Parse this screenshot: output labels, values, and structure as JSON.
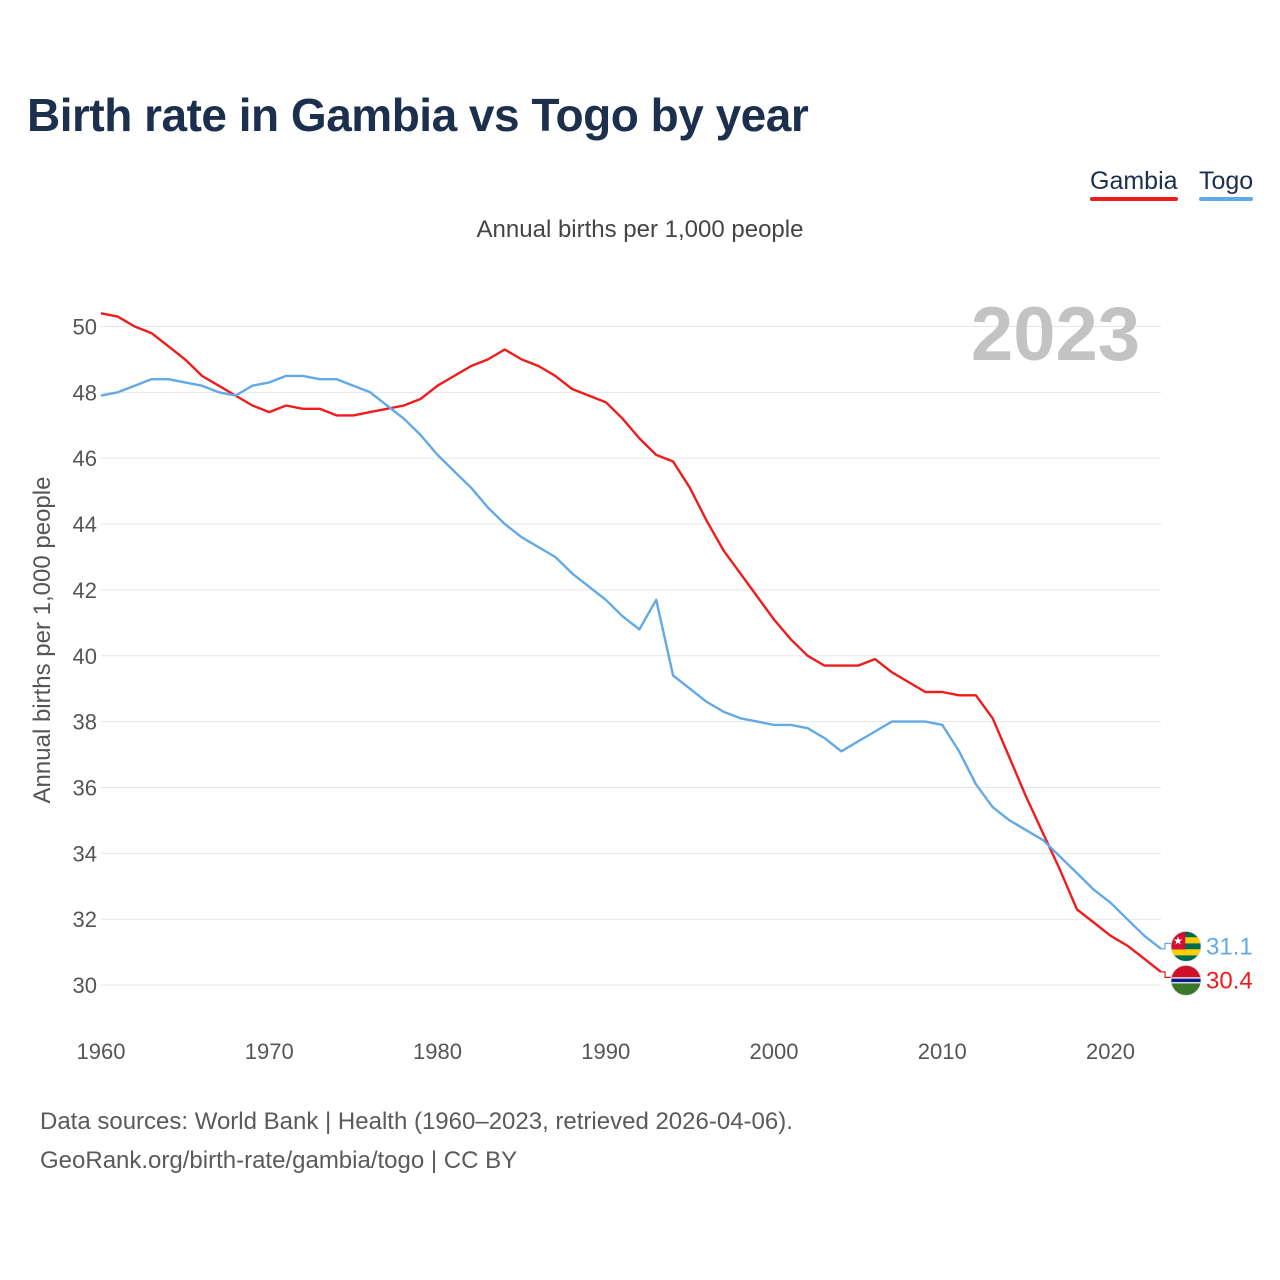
{
  "title": "Birth rate in Gambia vs Togo by year",
  "legend": [
    {
      "name": "Gambia",
      "color": "#ee1c1c"
    },
    {
      "name": "Togo",
      "color": "#62a9e6"
    }
  ],
  "footer": {
    "source": "Data sources: World Bank | Health (1960–2023, retrieved 2026-04-06).",
    "credit": "GeoRank.org/birth-rate/gambia/togo | CC BY"
  },
  "chart_data": {
    "type": "line",
    "title": "Birth rate in Gambia vs Togo by year",
    "subtitle": "Annual births per 1,000 people",
    "xlabel": "",
    "ylabel": "Annual births per 1,000 people",
    "year_label": "2023",
    "xlim": [
      1960,
      2023
    ],
    "ylim": [
      29,
      50.5
    ],
    "x_ticks": [
      1960,
      1970,
      1980,
      1990,
      2000,
      2010,
      2020
    ],
    "y_ticks": [
      30,
      32,
      34,
      36,
      38,
      40,
      42,
      44,
      46,
      48,
      50
    ],
    "grid": true,
    "legend_position": "top-right",
    "x": [
      1960,
      1961,
      1962,
      1963,
      1964,
      1965,
      1966,
      1967,
      1968,
      1969,
      1970,
      1971,
      1972,
      1973,
      1974,
      1975,
      1976,
      1977,
      1978,
      1979,
      1980,
      1981,
      1982,
      1983,
      1984,
      1985,
      1986,
      1987,
      1988,
      1989,
      1990,
      1991,
      1992,
      1993,
      1994,
      1995,
      1996,
      1997,
      1998,
      1999,
      2000,
      2001,
      2002,
      2003,
      2004,
      2005,
      2006,
      2007,
      2008,
      2009,
      2010,
      2011,
      2012,
      2013,
      2014,
      2015,
      2016,
      2017,
      2018,
      2019,
      2020,
      2021,
      2022,
      2023
    ],
    "series": [
      {
        "name": "Gambia",
        "color": "#ee1c1c",
        "flag": "gambia-flag-icon",
        "end_label": "30.4",
        "values": [
          50.4,
          50.3,
          50.0,
          49.8,
          49.4,
          49.0,
          48.5,
          48.2,
          47.9,
          47.6,
          47.4,
          47.6,
          47.5,
          47.5,
          47.3,
          47.3,
          47.4,
          47.5,
          47.6,
          47.8,
          48.2,
          48.5,
          48.8,
          49.0,
          49.3,
          49.0,
          48.8,
          48.5,
          48.1,
          47.9,
          47.7,
          47.2,
          46.6,
          46.1,
          45.9,
          45.1,
          44.1,
          43.2,
          42.5,
          41.8,
          41.1,
          40.5,
          40.0,
          39.7,
          39.7,
          39.7,
          39.9,
          39.5,
          39.2,
          38.9,
          38.9,
          38.8,
          38.8,
          38.1,
          36.9,
          35.7,
          34.6,
          33.5,
          32.3,
          31.9,
          31.5,
          31.2,
          30.8,
          30.4
        ]
      },
      {
        "name": "Togo",
        "color": "#62a9e6",
        "flag": "togo-flag-icon",
        "end_label": "31.1",
        "values": [
          47.9,
          48.0,
          48.2,
          48.4,
          48.4,
          48.3,
          48.2,
          48.0,
          47.9,
          48.2,
          48.3,
          48.5,
          48.5,
          48.4,
          48.4,
          48.2,
          48.0,
          47.6,
          47.2,
          46.7,
          46.1,
          45.6,
          45.1,
          44.5,
          44.0,
          43.6,
          43.3,
          43.0,
          42.5,
          42.1,
          41.7,
          41.2,
          40.8,
          41.7,
          39.4,
          39.0,
          38.6,
          38.3,
          38.1,
          38.0,
          37.9,
          37.9,
          37.8,
          37.5,
          37.1,
          37.4,
          37.7,
          38.0,
          38.0,
          38.0,
          37.9,
          37.1,
          36.1,
          35.4,
          35.0,
          34.7,
          34.4,
          33.9,
          33.4,
          32.9,
          32.5,
          32.0,
          31.5,
          31.1
        ]
      }
    ]
  }
}
